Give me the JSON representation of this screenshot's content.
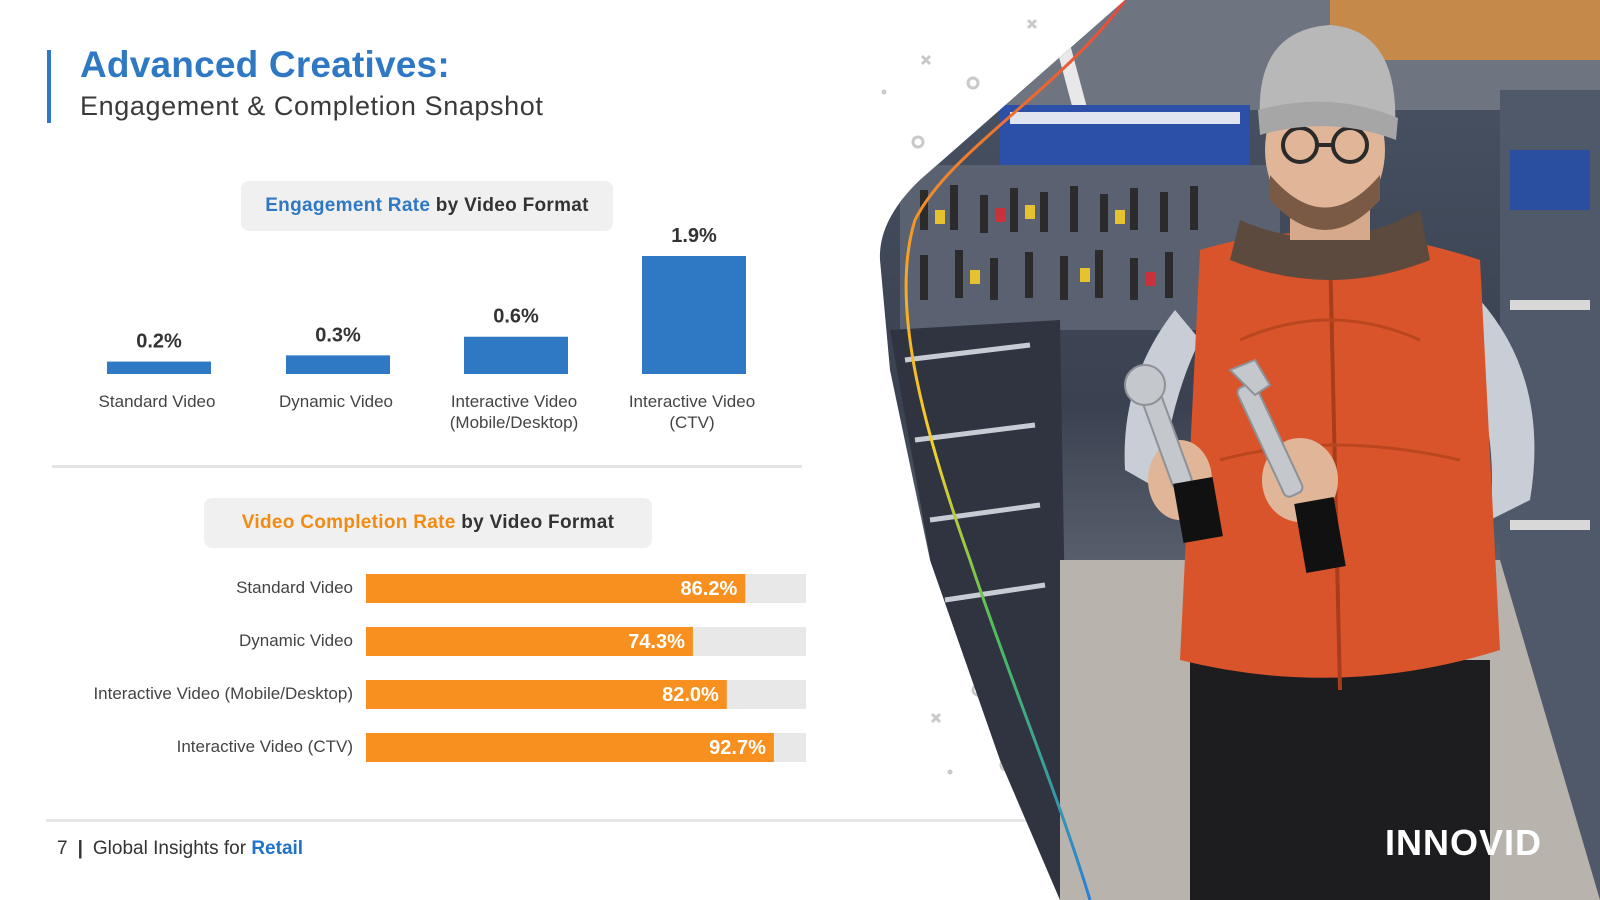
{
  "header": {
    "title": "Advanced Creatives:",
    "subtitle": "Engagement & Completion Snapshot"
  },
  "engagement_title": {
    "highlight": "Engagement Rate",
    "rest": " by Video Format"
  },
  "completion_title": {
    "highlight": "Video Completion Rate",
    "rest": " by Video Format"
  },
  "chart_data": [
    {
      "type": "bar",
      "categories": [
        "Standard Video",
        "Dynamic Video",
        "Interactive Video (Mobile/Desktop)",
        "Interactive Video (CTV)"
      ],
      "category_lines": [
        [
          "Standard Video"
        ],
        [
          "Dynamic Video"
        ],
        [
          "Interactive Video",
          "(Mobile/Desktop)"
        ],
        [
          "Interactive Video",
          "(CTV)"
        ]
      ],
      "values": [
        0.2,
        0.3,
        0.6,
        1.9
      ],
      "labels": [
        "0.2%",
        "0.3%",
        "0.6%",
        "1.9%"
      ],
      "title": "Engagement Rate by Video Format",
      "ylim": [
        0,
        1.9
      ],
      "color": "#2f78c4",
      "grid": false
    },
    {
      "type": "bar",
      "orientation": "horizontal",
      "categories": [
        "Standard Video",
        "Dynamic Video",
        "Interactive Video (Mobile/Desktop)",
        "Interactive Video (CTV)"
      ],
      "values": [
        86.2,
        74.3,
        82.0,
        92.7
      ],
      "labels": [
        "86.2%",
        "74.3%",
        "82.0%",
        "92.7%"
      ],
      "title": "Video Completion Rate by Video Format",
      "xlim": [
        0,
        100
      ],
      "color": "#f7901e",
      "track_color": "#e8e8e8",
      "grid": false
    }
  ],
  "footer": {
    "page": "7",
    "separator": "|",
    "text": "Global Insights for ",
    "accent": "Retail"
  },
  "logo": {
    "text": "INNOVID",
    "icon": "innovid-logo"
  },
  "photo": {
    "icon": "photo-man-holding-wrenches-in-hardware-store"
  }
}
